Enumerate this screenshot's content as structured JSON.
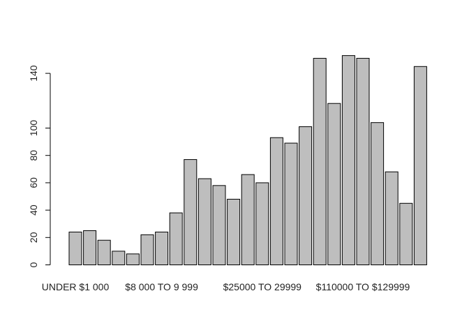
{
  "chart_data": {
    "type": "bar",
    "title": "",
    "xlabel": "",
    "ylabel": "",
    "ylim": [
      0,
      160
    ],
    "yticks": [
      0,
      20,
      40,
      60,
      80,
      100,
      140
    ],
    "bar_color": "#bebebe",
    "edge_color": "#000000",
    "grid": false,
    "categories": [
      "UNDER $1 000",
      "",
      "",
      "",
      "",
      "",
      "$8 000 TO 9 999",
      "",
      "",
      "",
      "",
      "",
      "",
      "$25000 TO 29999",
      "",
      "",
      "",
      "",
      "",
      "",
      "$110000 TO $129999",
      "",
      "",
      "",
      ""
    ],
    "values": [
      24,
      25,
      18,
      10,
      8,
      22,
      24,
      38,
      77,
      63,
      58,
      48,
      66,
      60,
      93,
      89,
      101,
      151,
      118,
      153,
      151,
      104,
      68,
      45,
      145
    ]
  }
}
